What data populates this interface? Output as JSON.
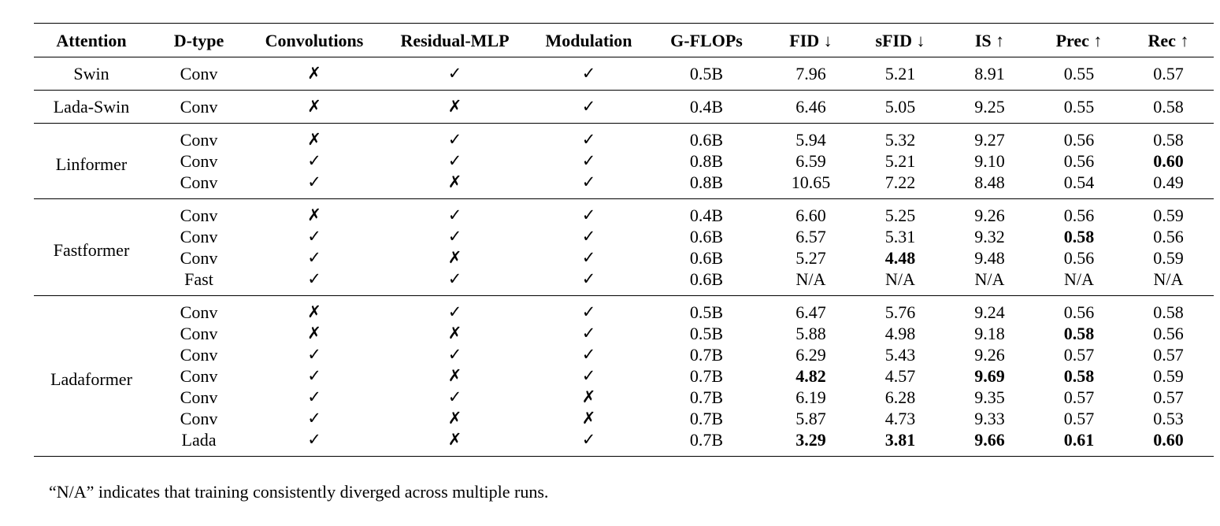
{
  "headers": [
    "Attention",
    "D-type",
    "Convolutions",
    "Residual-MLP",
    "Modulation",
    "G-FLOPs",
    "FID ↓",
    "sFID ↓",
    "IS ↑",
    "Prec ↑",
    "Rec ↑"
  ],
  "groups": [
    {
      "attention": "Swin",
      "rows": [
        {
          "dtype": "Conv",
          "conv": "✗",
          "mlp": "✓",
          "mod": "✓",
          "flops": "0.5B",
          "fid": "7.96",
          "sfid": "5.21",
          "is": "8.91",
          "prec": "0.55",
          "rec": "0.57"
        }
      ]
    },
    {
      "attention": "Lada-Swin",
      "rows": [
        {
          "dtype": "Conv",
          "conv": "✗",
          "mlp": "✗",
          "mod": "✓",
          "flops": "0.4B",
          "fid": "6.46",
          "sfid": "5.05",
          "is": "9.25",
          "prec": "0.55",
          "rec": "0.58"
        }
      ]
    },
    {
      "attention": "Linformer",
      "rows": [
        {
          "dtype": "Conv",
          "conv": "✗",
          "mlp": "✓",
          "mod": "✓",
          "flops": "0.6B",
          "fid": "5.94",
          "sfid": "5.32",
          "is": "9.27",
          "prec": "0.56",
          "rec": "0.58"
        },
        {
          "dtype": "Conv",
          "conv": "✓",
          "mlp": "✓",
          "mod": "✓",
          "flops": "0.8B",
          "fid": "6.59",
          "sfid": "5.21",
          "is": "9.10",
          "prec": "0.56",
          "rec": "0.60",
          "bold": [
            "rec"
          ]
        },
        {
          "dtype": "Conv",
          "conv": "✓",
          "mlp": "✗",
          "mod": "✓",
          "flops": "0.8B",
          "fid": "10.65",
          "sfid": "7.22",
          "is": "8.48",
          "prec": "0.54",
          "rec": "0.49"
        }
      ]
    },
    {
      "attention": "Fastformer",
      "rows": [
        {
          "dtype": "Conv",
          "conv": "✗",
          "mlp": "✓",
          "mod": "✓",
          "flops": "0.4B",
          "fid": "6.60",
          "sfid": "5.25",
          "is": "9.26",
          "prec": "0.56",
          "rec": "0.59"
        },
        {
          "dtype": "Conv",
          "conv": "✓",
          "mlp": "✓",
          "mod": "✓",
          "flops": "0.6B",
          "fid": "6.57",
          "sfid": "5.31",
          "is": "9.32",
          "prec": "0.58",
          "rec": "0.56",
          "bold": [
            "prec"
          ]
        },
        {
          "dtype": "Conv",
          "conv": "✓",
          "mlp": "✗",
          "mod": "✓",
          "flops": "0.6B",
          "fid": "5.27",
          "sfid": "4.48",
          "is": "9.48",
          "prec": "0.56",
          "rec": "0.59",
          "bold": [
            "sfid"
          ]
        },
        {
          "dtype": "Fast",
          "conv": "✓",
          "mlp": "✓",
          "mod": "✓",
          "flops": "0.6B",
          "fid": "N/A",
          "sfid": "N/A",
          "is": "N/A",
          "prec": "N/A",
          "rec": "N/A"
        }
      ]
    },
    {
      "attention": "Ladaformer",
      "rows": [
        {
          "dtype": "Conv",
          "conv": "✗",
          "mlp": "✓",
          "mod": "✓",
          "flops": "0.5B",
          "fid": "6.47",
          "sfid": "5.76",
          "is": "9.24",
          "prec": "0.56",
          "rec": "0.58"
        },
        {
          "dtype": "Conv",
          "conv": "✗",
          "mlp": "✗",
          "mod": "✓",
          "flops": "0.5B",
          "fid": "5.88",
          "sfid": "4.98",
          "is": "9.18",
          "prec": "0.58",
          "rec": "0.56",
          "bold": [
            "prec"
          ]
        },
        {
          "dtype": "Conv",
          "conv": "✓",
          "mlp": "✓",
          "mod": "✓",
          "flops": "0.7B",
          "fid": "6.29",
          "sfid": "5.43",
          "is": "9.26",
          "prec": "0.57",
          "rec": "0.57"
        },
        {
          "dtype": "Conv",
          "conv": "✓",
          "mlp": "✗",
          "mod": "✓",
          "flops": "0.7B",
          "fid": "4.82",
          "sfid": "4.57",
          "is": "9.69",
          "prec": "0.58",
          "rec": "0.59",
          "bold": [
            "fid",
            "is",
            "prec"
          ]
        },
        {
          "dtype": "Conv",
          "conv": "✓",
          "mlp": "✓",
          "mod": "✗",
          "flops": "0.7B",
          "fid": "6.19",
          "sfid": "6.28",
          "is": "9.35",
          "prec": "0.57",
          "rec": "0.57"
        },
        {
          "dtype": "Conv",
          "conv": "✓",
          "mlp": "✗",
          "mod": "✗",
          "flops": "0.7B",
          "fid": "5.87",
          "sfid": "4.73",
          "is": "9.33",
          "prec": "0.57",
          "rec": "0.53"
        },
        {
          "dtype": "Lada",
          "conv": "✓",
          "mlp": "✗",
          "mod": "✓",
          "flops": "0.7B",
          "fid": "3.29",
          "sfid": "3.81",
          "is": "9.66",
          "prec": "0.61",
          "rec": "0.60",
          "bold": [
            "fid",
            "sfid",
            "is",
            "prec",
            "rec"
          ]
        }
      ]
    }
  ],
  "footnote": "“N/A” indicates that training consistently diverged across multiple runs."
}
